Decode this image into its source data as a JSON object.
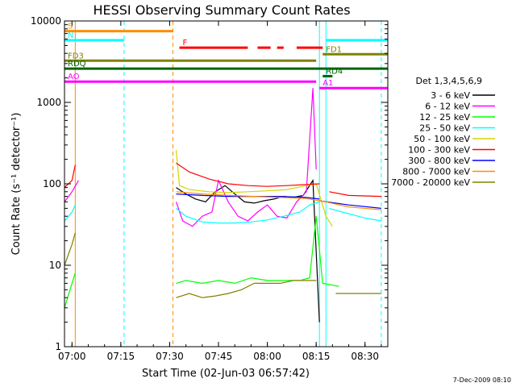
{
  "chart_data": {
    "type": "line",
    "title": "HESSI Observing Summary Count Rates",
    "xlabel": "Start Time (02-Jun-03 06:57:42)",
    "ylabel": "Count Rate (s⁻¹ detector⁻¹)",
    "y_scale": "log",
    "ylim": [
      1,
      10000
    ],
    "xlim": [
      "06:57:42",
      "08:37:00"
    ],
    "x_ticks": [
      "07:00",
      "07:15",
      "07:30",
      "07:45",
      "08:00",
      "08:15",
      "08:30"
    ],
    "y_ticks": [
      "1",
      "10",
      "100",
      "1000",
      "10000"
    ],
    "footer_date": "7-Dec-2009 08:10",
    "legend": {
      "title": "Det 1,3,4,5,6,9",
      "placement": "right",
      "entries": [
        {
          "label": "3 - 6 keV",
          "color": "#000000"
        },
        {
          "label": "6 - 12 keV",
          "color": "#ff00ff"
        },
        {
          "label": "12 - 25 keV",
          "color": "#00ff00"
        },
        {
          "label": "25 - 50 keV",
          "color": "#00ffff"
        },
        {
          "label": "50 - 100 keV",
          "color": "#d4d400"
        },
        {
          "label": "100 - 300 keV",
          "color": "#ff0000"
        },
        {
          "label": "300 - 800 keV",
          "color": "#0000ff"
        },
        {
          "label": "800 - 7000 keV",
          "color": "#ff8c00"
        },
        {
          "label": "7000 - 20000 keV",
          "color": "#808000"
        }
      ]
    },
    "series": [
      {
        "name": "3 - 6 keV",
        "color": "#000000",
        "segments": [
          {
            "x": [
              "07:32",
              "07:35",
              "07:38",
              "07:41",
              "07:44",
              "07:47",
              "07:50",
              "07:53",
              "07:56",
              "07:59",
              "08:02",
              "08:05",
              "08:08",
              "08:11",
              "08:14",
              "08:16"
            ],
            "y": [
              90,
              75,
              65,
              60,
              80,
              95,
              75,
              60,
              58,
              62,
              65,
              70,
              68,
              72,
              110,
              2
            ]
          }
        ]
      },
      {
        "name": "6 - 12 keV",
        "color": "#ff00ff",
        "segments": [
          {
            "x": [
              "06:57:42",
              "07:00",
              "07:02"
            ],
            "y": [
              60,
              80,
              110
            ]
          },
          {
            "x": [
              "07:32",
              "07:34",
              "07:37",
              "07:40",
              "07:43",
              "07:45",
              "07:48",
              "07:51",
              "07:54",
              "07:57",
              "08:00",
              "08:03",
              "08:06",
              "08:09",
              "08:12",
              "08:14",
              "08:15"
            ],
            "y": [
              60,
              35,
              30,
              40,
              45,
              110,
              60,
              40,
              35,
              45,
              55,
              40,
              38,
              60,
              80,
              1500,
              150
            ]
          }
        ]
      },
      {
        "name": "12 - 25 keV",
        "color": "#00ff00",
        "segments": [
          {
            "x": [
              "06:57:42",
              "07:00",
              "07:01"
            ],
            "y": [
              3,
              6,
              8
            ]
          },
          {
            "x": [
              "07:32",
              "07:35",
              "07:40",
              "07:45",
              "07:50",
              "07:55",
              "08:00",
              "08:05",
              "08:10",
              "08:13",
              "08:15",
              "08:17"
            ],
            "y": [
              6,
              6.5,
              6,
              6.5,
              6,
              7,
              6.5,
              6.5,
              6.5,
              7,
              40,
              6
            ]
          },
          {
            "x": [
              "08:17",
              "08:22"
            ],
            "y": [
              6,
              5.5
            ]
          }
        ]
      },
      {
        "name": "25 - 50 keV",
        "color": "#00ffff",
        "segments": [
          {
            "x": [
              "06:57:42",
              "07:00",
              "07:01"
            ],
            "y": [
              35,
              45,
              55
            ]
          },
          {
            "x": [
              "07:32",
              "07:35",
              "07:40",
              "07:45",
              "07:50",
              "07:55",
              "08:00",
              "08:05",
              "08:10",
              "08:13",
              "08:16"
            ],
            "y": [
              50,
              40,
              34,
              33,
              33,
              34,
              36,
              40,
              45,
              55,
              60
            ]
          },
          {
            "x": [
              "08:19",
              "08:23",
              "08:30",
              "08:35"
            ],
            "y": [
              50,
              45,
              38,
              35
            ]
          }
        ]
      },
      {
        "name": "50 - 100 keV",
        "color": "#d4d400",
        "segments": [
          {
            "x": [
              "07:32",
              "07:33",
              "07:36",
              "07:42",
              "07:48",
              "07:54",
              "08:00",
              "08:06",
              "08:12",
              "08:15",
              "08:18",
              "08:20"
            ],
            "y": [
              260,
              95,
              85,
              80,
              78,
              80,
              82,
              85,
              95,
              100,
              40,
              30
            ]
          }
        ]
      },
      {
        "name": "100 - 300 keV",
        "color": "#ff0000",
        "segments": [
          {
            "x": [
              "06:57:42",
              "07:00",
              "07:01"
            ],
            "y": [
              90,
              110,
              170
            ]
          },
          {
            "x": [
              "07:32",
              "07:36",
              "07:42",
              "07:48",
              "07:54",
              "08:00",
              "08:06",
              "08:12",
              "08:16"
            ],
            "y": [
              180,
              140,
              115,
              100,
              95,
              93,
              95,
              98,
              100
            ]
          },
          {
            "x": [
              "08:19",
              "08:25",
              "08:35"
            ],
            "y": [
              80,
              72,
              70
            ]
          }
        ]
      },
      {
        "name": "300 - 800 keV",
        "color": "#0000ff",
        "segments": [
          {
            "x": [
              "07:32",
              "07:40",
              "07:48",
              "07:56",
              "08:04",
              "08:12",
              "08:16"
            ],
            "y": [
              75,
              72,
              70,
              70,
              70,
              68,
              65
            ]
          },
          {
            "x": [
              "08:16",
              "08:25",
              "08:35"
            ],
            "y": [
              62,
              55,
              50
            ]
          }
        ]
      },
      {
        "name": "800 - 7000 keV",
        "color": "#ff8c00",
        "segments": [
          {
            "x": [
              "07:32",
              "07:40",
              "07:48",
              "07:56",
              "08:04",
              "08:12",
              "08:18",
              "08:25",
              "08:35"
            ],
            "y": [
              80,
              75,
              72,
              70,
              68,
              66,
              60,
              52,
              48
            ]
          }
        ]
      },
      {
        "name": "7000 - 20000 keV",
        "color": "#808000",
        "segments": [
          {
            "x": [
              "06:57:42",
              "07:00",
              "07:01"
            ],
            "y": [
              10,
              18,
              25
            ]
          },
          {
            "x": [
              "07:32",
              "07:36",
              "07:40",
              "07:44",
              "07:48",
              "07:52",
              "07:56",
              "08:00",
              "08:04",
              "08:08",
              "08:12",
              "08:15"
            ],
            "y": [
              4,
              4.5,
              4,
              4.2,
              4.5,
              5,
              6,
              6,
              6,
              6.5,
              6.5,
              6.5
            ]
          },
          {
            "x": [
              "08:21",
              "08:28",
              "08:35"
            ],
            "y": [
              4.5,
              4.5,
              4.5
            ]
          }
        ]
      }
    ],
    "flag_bars": [
      {
        "label": "S",
        "color": "#ff8c00",
        "y": 7500,
        "ranges": [
          [
            "06:57:42",
            "07:31"
          ]
        ]
      },
      {
        "label": "N",
        "color": "#00ffff",
        "y": 5800,
        "ranges": [
          [
            "06:57:42",
            "07:16"
          ],
          [
            "08:18",
            "08:37"
          ]
        ]
      },
      {
        "label": "F",
        "color": "#ff0000",
        "y": 4700,
        "ranges": [
          [
            "07:33",
            "07:54"
          ],
          [
            "07:57",
            "08:01"
          ],
          [
            "08:03",
            "08:05"
          ],
          [
            "08:09",
            "08:17"
          ]
        ]
      },
      {
        "label": "FD1",
        "color": "#808000",
        "y": 3900,
        "ranges": [
          [
            "08:17",
            "08:37"
          ]
        ]
      },
      {
        "label": "FD3",
        "color": "#808000",
        "y": 3250,
        "ranges": [
          [
            "06:57:42",
            "08:15"
          ]
        ]
      },
      {
        "label": "RDQ",
        "color": "#006400",
        "y": 2600,
        "ranges": [
          [
            "06:57:42",
            "08:37"
          ]
        ]
      },
      {
        "label": "RD4",
        "color": "#006400",
        "y": 2100,
        "ranges": [
          [
            "08:17",
            "08:20"
          ]
        ]
      },
      {
        "label": "AO",
        "color": "#ff00ff",
        "y": 1800,
        "ranges": [
          [
            "06:57:42",
            "08:15"
          ]
        ]
      },
      {
        "label": "A1",
        "color": "#ff00ff",
        "y": 1500,
        "ranges": [
          [
            "08:16",
            "08:37"
          ]
        ]
      }
    ],
    "vertical_markers": [
      {
        "x": "06:57:42",
        "color": "#00ffff",
        "style": "solid"
      },
      {
        "x": "07:01",
        "color": "#ff8c00",
        "style": "solid"
      },
      {
        "x": "07:16",
        "color": "#00ffff",
        "style": "dashed"
      },
      {
        "x": "07:31",
        "color": "#ff8c00",
        "style": "dashed"
      },
      {
        "x": "08:16",
        "color": "#00ffff",
        "style": "solid"
      },
      {
        "x": "08:18",
        "color": "#00ffff",
        "style": "solid"
      },
      {
        "x": "08:35",
        "color": "#00ffff",
        "style": "dashed"
      }
    ]
  }
}
